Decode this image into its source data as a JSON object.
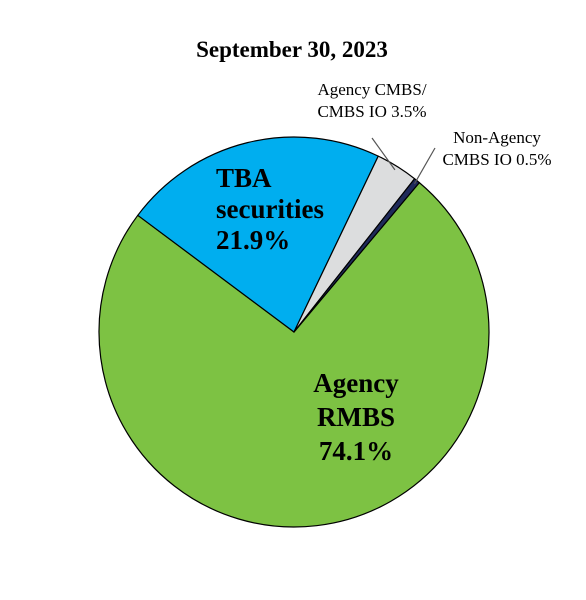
{
  "chart_data": {
    "type": "pie",
    "title": "September 30, 2023",
    "slices": [
      {
        "label_lines": [
          "Agency",
          "RMBS",
          "74.1%"
        ],
        "value": 74.1,
        "color": "#7DC243"
      },
      {
        "label_lines": [
          "TBA",
          "securities",
          "21.9%"
        ],
        "value": 21.9,
        "color": "#00AEEF"
      },
      {
        "label_lines": [
          "Agency CMBS/",
          "CMBS IO 3.5%"
        ],
        "value": 3.5,
        "color": "#DCDDDE"
      },
      {
        "label_lines": [
          "Non-Agency",
          "CMBS IO 0.5%"
        ],
        "value": 0.5,
        "color": "#1F2A5A"
      }
    ]
  }
}
